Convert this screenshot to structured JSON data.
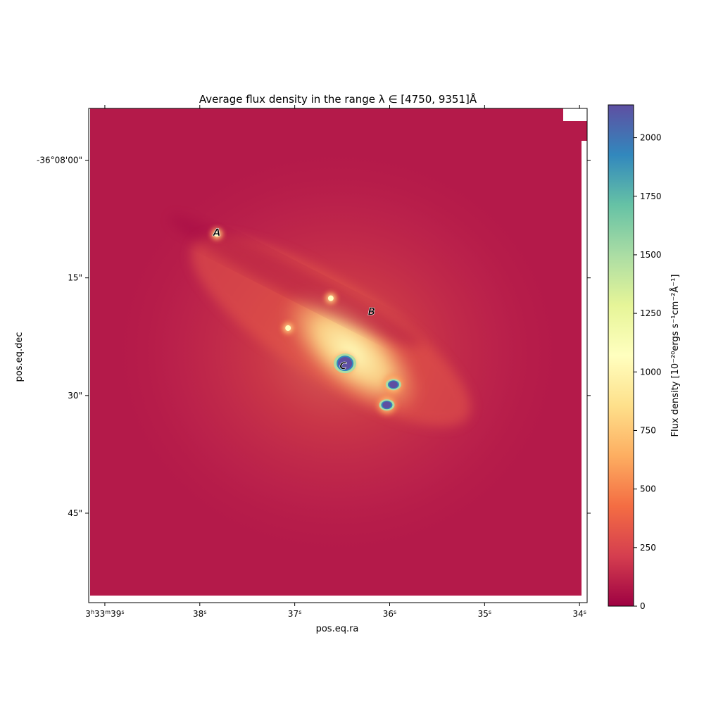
{
  "chart_data": {
    "type": "heatmap",
    "title": "Average flux density in the range λ ∈ [4750, 9351]Å",
    "xlabel": "pos.eq.ra",
    "ylabel": "pos.eq.dec",
    "x_ticks": [
      {
        "value": 39,
        "h": "3",
        "m": "33",
        "s": "39"
      },
      {
        "value": 38,
        "s": "38"
      },
      {
        "value": 37,
        "s": "37"
      },
      {
        "value": 36,
        "s": "36"
      },
      {
        "value": 35,
        "s": "35"
      },
      {
        "value": 34,
        "s": "34"
      }
    ],
    "x_range": [
      39.17,
      33.92
    ],
    "y_ticks": [
      {
        "value": 0,
        "label": "-36°08'00\""
      },
      {
        "value": 15,
        "label": "15\""
      },
      {
        "value": 30,
        "label": "30\""
      },
      {
        "value": 45,
        "label": "45\""
      }
    ],
    "y_range": [
      -6.6,
      56.4
    ],
    "colorbar": {
      "label": "Flux density [10⁻²⁰ergs s⁻¹cm⁻²Å⁻¹]",
      "ticks": [
        0,
        250,
        500,
        750,
        1000,
        1250,
        1500,
        1750,
        2000
      ],
      "range": [
        0,
        2140
      ],
      "colormap": "Spectral_r",
      "stops": [
        "#9e0142",
        "#d53e4f",
        "#f46d43",
        "#fdae61",
        "#fee08b",
        "#ffffbf",
        "#e6f598",
        "#abdda4",
        "#66c2a5",
        "#3288bd",
        "#5e4fa2"
      ]
    },
    "annotations": [
      {
        "label": "A",
        "ra_s": 37.82,
        "dec_arcsec": 9.2
      },
      {
        "label": "B",
        "ra_s": 36.19,
        "dec_arcsec": 19.3
      },
      {
        "label": "C",
        "ra_s": 36.49,
        "dec_arcsec": 26.2
      }
    ],
    "sources": [
      {
        "name": "nucleus",
        "ra_s": 36.47,
        "dec_arcsec": 25.9,
        "flux": 2140
      },
      {
        "name": "knot-east",
        "ra_s": 35.96,
        "dec_arcsec": 28.6,
        "flux": 2000
      },
      {
        "name": "knot-southeast",
        "ra_s": 36.03,
        "dec_arcsec": 31.2,
        "flux": 2000
      },
      {
        "name": "knot-A",
        "ra_s": 37.82,
        "dec_arcsec": 9.4,
        "flux": 750
      },
      {
        "name": "knot-upper",
        "ra_s": 36.62,
        "dec_arcsec": 17.6,
        "flux": 800
      },
      {
        "name": "knot-left",
        "ra_s": 37.07,
        "dec_arcsec": 21.4,
        "flux": 850
      }
    ]
  }
}
